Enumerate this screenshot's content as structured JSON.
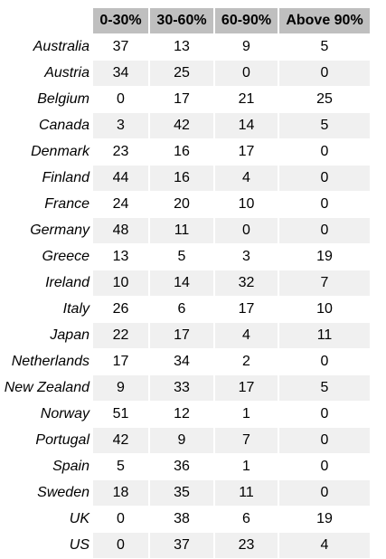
{
  "table": {
    "columns": [
      "0-30%",
      "30-60%",
      "60-90%",
      "Above 90%"
    ],
    "rows": [
      {
        "country": "Australia",
        "values": [
          "37",
          "13",
          "9",
          "5"
        ]
      },
      {
        "country": "Austria",
        "values": [
          "34",
          "25",
          "0",
          "0"
        ]
      },
      {
        "country": "Belgium",
        "values": [
          "0",
          "17",
          "21",
          "25"
        ]
      },
      {
        "country": "Canada",
        "values": [
          "3",
          "42",
          "14",
          "5"
        ]
      },
      {
        "country": "Denmark",
        "values": [
          "23",
          "16",
          "17",
          "0"
        ]
      },
      {
        "country": "Finland",
        "values": [
          "44",
          "16",
          "4",
          "0"
        ]
      },
      {
        "country": "France",
        "values": [
          "24",
          "20",
          "10",
          "0"
        ]
      },
      {
        "country": "Germany",
        "values": [
          "48",
          "11",
          "0",
          "0"
        ]
      },
      {
        "country": "Greece",
        "values": [
          "13",
          "5",
          "3",
          "19"
        ]
      },
      {
        "country": "Ireland",
        "values": [
          "10",
          "14",
          "32",
          "7"
        ]
      },
      {
        "country": "Italy",
        "values": [
          "26",
          "6",
          "17",
          "10"
        ]
      },
      {
        "country": "Japan",
        "values": [
          "22",
          "17",
          "4",
          "11"
        ]
      },
      {
        "country": "Netherlands",
        "values": [
          "17",
          "34",
          "2",
          "0"
        ]
      },
      {
        "country": "New Zealand",
        "values": [
          "9",
          "33",
          "17",
          "5"
        ]
      },
      {
        "country": "Norway",
        "values": [
          "51",
          "12",
          "1",
          "0"
        ]
      },
      {
        "country": "Portugal",
        "values": [
          "42",
          "9",
          "7",
          "0"
        ]
      },
      {
        "country": "Spain",
        "values": [
          "5",
          "36",
          "1",
          "0"
        ]
      },
      {
        "country": "Sweden",
        "values": [
          "18",
          "35",
          "11",
          "0"
        ]
      },
      {
        "country": "UK",
        "values": [
          "0",
          "38",
          "6",
          "19"
        ]
      },
      {
        "country": "US",
        "values": [
          "0",
          "37",
          "23",
          "4"
        ]
      }
    ]
  },
  "colors": {
    "header_background": "#bfbfbf",
    "row_stripe": "#f0f0f0",
    "background": "#ffffff",
    "text": "#000000"
  }
}
